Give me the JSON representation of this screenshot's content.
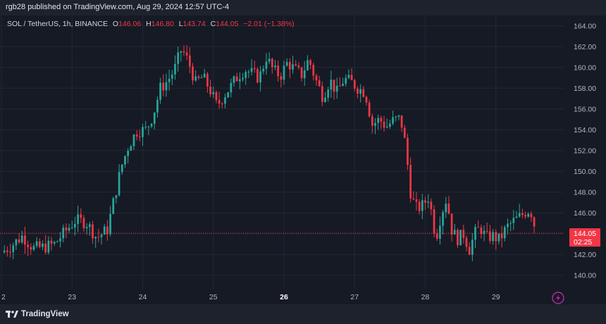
{
  "header": {
    "published": "rgb28 published on TradingView.com, Aug 29, 2024 12:57 UTC-4"
  },
  "legend": {
    "symbol": "SOL / TetherUS, 1h, BINANCE",
    "o_label": "O",
    "o_value": "146.06",
    "h_label": "H",
    "h_value": "146.80",
    "l_label": "L",
    "l_value": "143.74",
    "c_label": "C",
    "c_value": "144.05",
    "change": "−2.01 (−1.38%)"
  },
  "price_label": {
    "price": "144.05",
    "countdown": "02:25"
  },
  "footer": {
    "brand": "TradingView"
  },
  "colors": {
    "up": "#26a69a",
    "down": "#f23645",
    "background": "#161a25",
    "grid": "#232734",
    "axis_text": "#b2b5be"
  },
  "icons": {
    "lightning": "lightning-icon",
    "logo": "tradingview-logo-icon"
  },
  "chart_data": {
    "type": "candlestick",
    "title": "SOL / TetherUS, 1h, BINANCE",
    "ylim": [
      138.7,
      165.0
    ],
    "y_ticks": [
      "164.00",
      "162.00",
      "160.00",
      "158.00",
      "156.00",
      "154.00",
      "152.00",
      "150.00",
      "148.00",
      "146.00",
      "144.00",
      "142.00",
      "140.00"
    ],
    "x_ticks": [
      {
        "label": "2",
        "day": 22,
        "bold": false
      },
      {
        "label": "23",
        "day": 23,
        "bold": false
      },
      {
        "label": "24",
        "day": 24,
        "bold": false
      },
      {
        "label": "25",
        "day": 25,
        "bold": false
      },
      {
        "label": "26",
        "day": 26,
        "bold": true
      },
      {
        "label": "27",
        "day": 27,
        "bold": false
      },
      {
        "label": "28",
        "day": 28,
        "bold": false
      },
      {
        "label": "29",
        "day": 29,
        "bold": false
      }
    ],
    "xlim_days": [
      21.98,
      29.96
    ],
    "last_price": 144.05,
    "grid": true,
    "approx_close_path": [
      [
        22.0,
        142.2
      ],
      [
        22.15,
        142.9
      ],
      [
        22.3,
        143.8
      ],
      [
        22.45,
        142.6
      ],
      [
        22.6,
        142.7
      ],
      [
        22.75,
        143.0
      ],
      [
        22.9,
        144.2
      ],
      [
        23.05,
        145.3
      ],
      [
        23.2,
        145.1
      ],
      [
        23.35,
        143.6
      ],
      [
        23.5,
        144.4
      ],
      [
        23.6,
        147.5
      ],
      [
        23.7,
        150.5
      ],
      [
        23.8,
        152.5
      ],
      [
        23.92,
        153.9
      ],
      [
        24.05,
        154.0
      ],
      [
        24.15,
        155.5
      ],
      [
        24.25,
        158.0
      ],
      [
        24.35,
        158.7
      ],
      [
        24.45,
        159.8
      ],
      [
        24.55,
        161.8
      ],
      [
        24.65,
        160.5
      ],
      [
        24.75,
        158.5
      ],
      [
        24.85,
        159.1
      ],
      [
        24.95,
        157.9
      ],
      [
        25.05,
        156.3
      ],
      [
        25.15,
        157.3
      ],
      [
        25.25,
        158.2
      ],
      [
        25.35,
        159.2
      ],
      [
        25.45,
        159.8
      ],
      [
        25.55,
        159.4
      ],
      [
        25.65,
        159.0
      ],
      [
        25.75,
        161.0
      ],
      [
        25.85,
        159.7
      ],
      [
        25.95,
        159.2
      ],
      [
        26.05,
        160.5
      ],
      [
        26.15,
        159.8
      ],
      [
        26.25,
        159.3
      ],
      [
        26.35,
        160.8
      ],
      [
        26.45,
        158.8
      ],
      [
        26.55,
        157.2
      ],
      [
        26.65,
        158.8
      ],
      [
        26.75,
        157.6
      ],
      [
        26.85,
        158.9
      ],
      [
        26.95,
        158.6
      ],
      [
        27.05,
        158.0
      ],
      [
        27.15,
        157.6
      ],
      [
        27.25,
        154.5
      ],
      [
        27.35,
        155.0
      ],
      [
        27.45,
        154.3
      ],
      [
        27.55,
        154.9
      ],
      [
        27.65,
        155.1
      ],
      [
        27.72,
        152.5
      ],
      [
        27.8,
        147.5
      ],
      [
        27.88,
        146.4
      ],
      [
        27.96,
        146.7
      ],
      [
        28.05,
        147.6
      ],
      [
        28.15,
        143.5
      ],
      [
        28.22,
        145.8
      ],
      [
        28.3,
        147.4
      ],
      [
        28.38,
        144.2
      ],
      [
        28.46,
        143.5
      ],
      [
        28.55,
        144.0
      ],
      [
        28.62,
        142.4
      ],
      [
        28.7,
        144.0
      ],
      [
        28.78,
        144.6
      ],
      [
        28.86,
        143.6
      ],
      [
        28.95,
        143.8
      ],
      [
        29.05,
        143.4
      ],
      [
        29.15,
        144.6
      ],
      [
        29.25,
        145.2
      ],
      [
        29.35,
        145.7
      ],
      [
        29.45,
        146.3
      ],
      [
        29.52,
        145.9
      ],
      [
        29.56,
        144.05
      ]
    ]
  }
}
